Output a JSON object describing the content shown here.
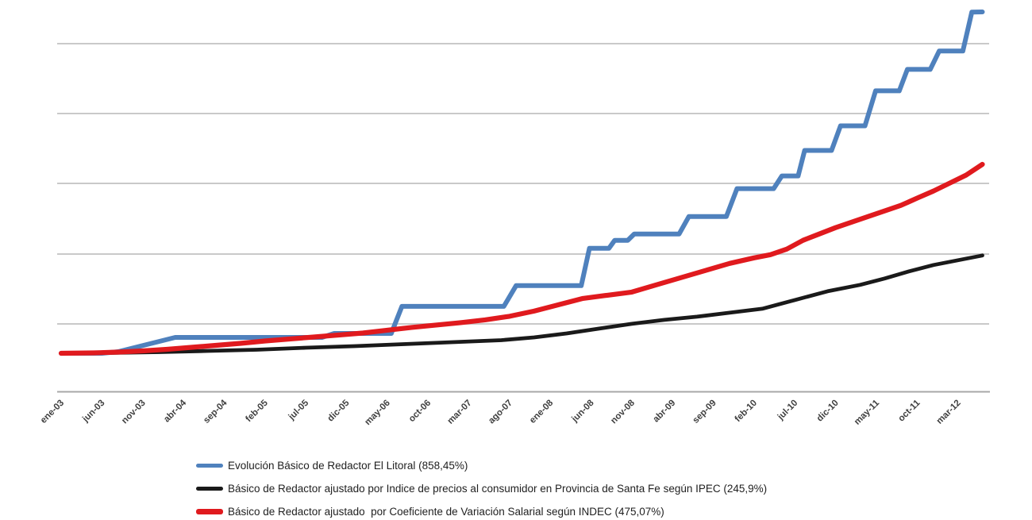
{
  "page": {
    "background_color": "#ffffff",
    "title": ""
  },
  "chart_data": {
    "type": "line",
    "title": "",
    "xlabel": "",
    "ylabel": "",
    "grid": "horizontal-only",
    "y_axis": {
      "tick_labels_visible": false,
      "base_index_value": 100
    },
    "x_axis": {
      "start_month": "ene-03",
      "months_per_tick": 5,
      "data_end_month_offset": 113,
      "tick_labels": [
        "ene-03",
        "jun-03",
        "nov-03",
        "abr-04",
        "sep-04",
        "feb-05",
        "jul-05",
        "dic-05",
        "may-06",
        "oct-06",
        "mar-07",
        "ago-07",
        "ene-08",
        "jun-08",
        "nov-08",
        "abr-09",
        "sep-09",
        "feb-10",
        "jul-10",
        "dic-10",
        "may-11",
        "oct-11",
        "mar-12"
      ]
    },
    "legend": {
      "position": "bottom-left"
    },
    "series": [
      {
        "id": "litoral",
        "name": "Evolución Básico de Redactor El Litoral (858,45%)",
        "final_increase_pct": "858,45%",
        "color": "#4f81bd",
        "shape": "stepped",
        "points_format": "[months_since_ene03, index_value_base100]",
        "points": [
          [
            0,
            100
          ],
          [
            5,
            100
          ],
          [
            7,
            104
          ],
          [
            14,
            140
          ],
          [
            32,
            140
          ],
          [
            33.5,
            150
          ],
          [
            40.5,
            150
          ],
          [
            41.8,
            218
          ],
          [
            54.3,
            218
          ],
          [
            55.8,
            270
          ],
          [
            63.8,
            270
          ],
          [
            64.8,
            364
          ],
          [
            67.2,
            364
          ],
          [
            67.9,
            384
          ],
          [
            69.5,
            384
          ],
          [
            70.3,
            400
          ],
          [
            75.8,
            400
          ],
          [
            77,
            444
          ],
          [
            81.6,
            444
          ],
          [
            82.9,
            514
          ],
          [
            87.4,
            514
          ],
          [
            88.4,
            546
          ],
          [
            90.4,
            546
          ],
          [
            91.2,
            610
          ],
          [
            94.5,
            610
          ],
          [
            95.6,
            672
          ],
          [
            98.6,
            672
          ],
          [
            99.9,
            760
          ],
          [
            102.8,
            760
          ],
          [
            103.8,
            814
          ],
          [
            106.6,
            814
          ],
          [
            107.7,
            860
          ],
          [
            110.6,
            860
          ],
          [
            111.7,
            958
          ],
          [
            113,
            958.45
          ]
        ]
      },
      {
        "id": "ipec",
        "name": "Básico de Redactor ajustado por Indice de precios al consumidor en Provincia de Santa Fe según IPEC (245,9%)",
        "final_increase_pct": "245,9%",
        "color": "#1a1a1a",
        "shape": "smooth",
        "points_format": "[months_since_ene03, index_value_base100]",
        "points": [
          [
            0,
            100
          ],
          [
            6,
            101
          ],
          [
            12,
            103
          ],
          [
            18,
            106
          ],
          [
            24,
            109
          ],
          [
            30,
            114
          ],
          [
            36,
            118
          ],
          [
            42,
            123
          ],
          [
            48,
            128
          ],
          [
            54,
            133
          ],
          [
            58,
            140
          ],
          [
            62,
            150
          ],
          [
            66,
            162
          ],
          [
            70,
            174
          ],
          [
            74,
            184
          ],
          [
            78,
            192
          ],
          [
            82,
            202
          ],
          [
            86,
            212
          ],
          [
            90,
            234
          ],
          [
            94,
            256
          ],
          [
            98,
            272
          ],
          [
            101,
            288
          ],
          [
            104,
            306
          ],
          [
            107,
            322
          ],
          [
            110,
            334
          ],
          [
            113,
            345.9
          ]
        ]
      },
      {
        "id": "indec",
        "name": "Básico de Redactor ajustado  por Coeficiente de Variación Salarial según INDEC (475,07%)",
        "final_increase_pct": "475,07%",
        "color": "#e01a1e",
        "shape": "smooth",
        "points_format": "[months_since_ene03, index_value_base100]",
        "points": [
          [
            0,
            100
          ],
          [
            4,
            101
          ],
          [
            7,
            103
          ],
          [
            10,
            106
          ],
          [
            13,
            110
          ],
          [
            16,
            115
          ],
          [
            19,
            120
          ],
          [
            22,
            125
          ],
          [
            25,
            131
          ],
          [
            28,
            136
          ],
          [
            31,
            141
          ],
          [
            34,
            146
          ],
          [
            37,
            151
          ],
          [
            40,
            158
          ],
          [
            43,
            165
          ],
          [
            46,
            171
          ],
          [
            49,
            177
          ],
          [
            52,
            184
          ],
          [
            55,
            193
          ],
          [
            58,
            206
          ],
          [
            61,
            222
          ],
          [
            64,
            238
          ],
          [
            67,
            246
          ],
          [
            70,
            254
          ],
          [
            73,
            272
          ],
          [
            76,
            290
          ],
          [
            79,
            308
          ],
          [
            82,
            326
          ],
          [
            85,
            340
          ],
          [
            87,
            348
          ],
          [
            89,
            362
          ],
          [
            91,
            384
          ],
          [
            93,
            400
          ],
          [
            95,
            416
          ],
          [
            97,
            430
          ],
          [
            99,
            444
          ],
          [
            101,
            458
          ],
          [
            103,
            472
          ],
          [
            105,
            490
          ],
          [
            107,
            508
          ],
          [
            109,
            528
          ],
          [
            111,
            548
          ],
          [
            113,
            575.07
          ]
        ]
      }
    ]
  }
}
